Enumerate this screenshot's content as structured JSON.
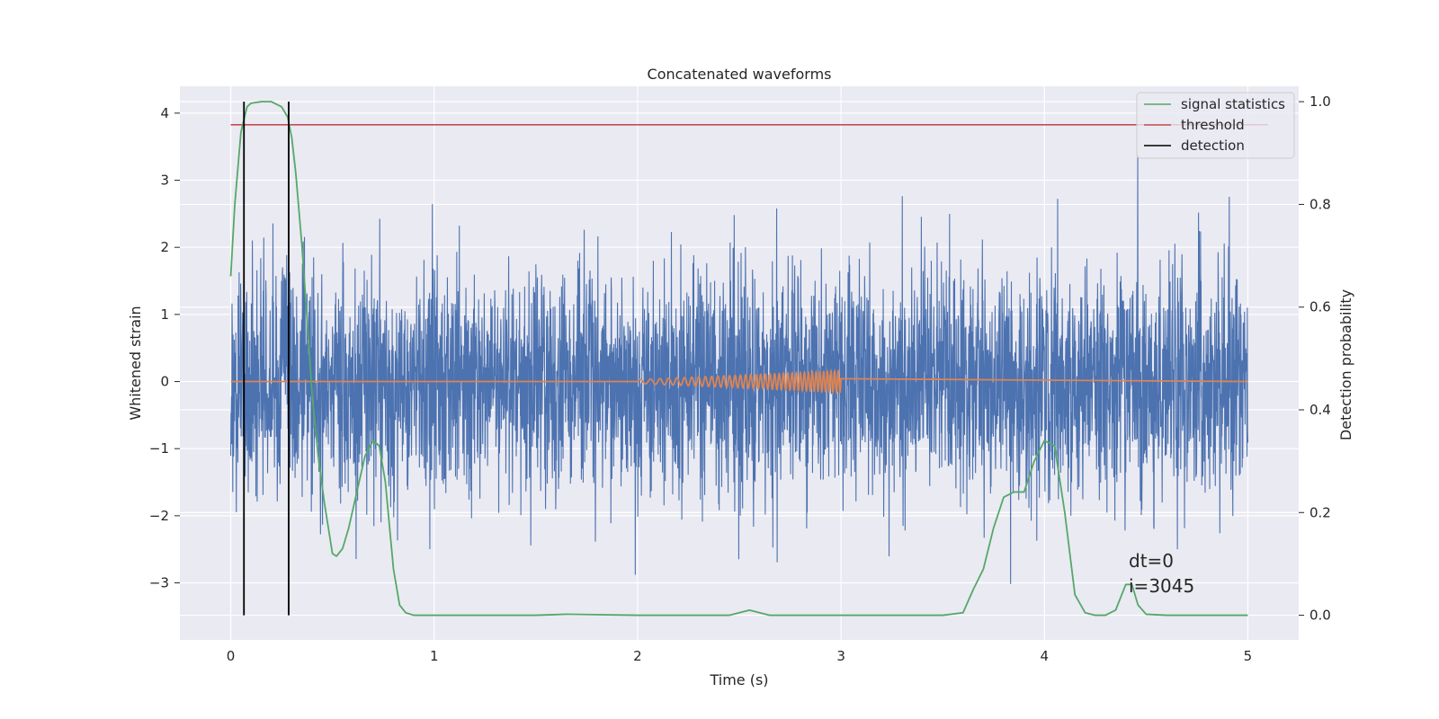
{
  "chart_data": {
    "type": "line",
    "title": "Concatenated waveforms",
    "xlabel": "Time (s)",
    "ylabel": "Whitened strain",
    "y2label": "Detection probability",
    "xlim": [
      -0.25,
      5.25
    ],
    "ylim": [
      -3.85,
      4.4
    ],
    "y2lim": [
      -0.048,
      1.03
    ],
    "xticks": [
      0,
      1,
      2,
      3,
      4,
      5
    ],
    "xtick_labels": [
      "0",
      "1",
      "2",
      "3",
      "4",
      "5"
    ],
    "yticks": [
      4,
      3,
      2,
      1,
      0,
      -1,
      -2,
      -3
    ],
    "ytick_labels": [
      "4",
      "3",
      "2",
      "1",
      "0",
      "−1",
      "−2",
      "−3"
    ],
    "y2ticks": [
      1.0,
      0.8,
      0.6,
      0.4,
      0.2,
      0.0
    ],
    "y2tick_labels": [
      "1.0",
      "0.8",
      "0.6",
      "0.4",
      "0.2",
      "0.0"
    ],
    "grid": true,
    "legend_position": "top-right",
    "colors": {
      "strain": "#4c72b0",
      "injection": "#dd8452",
      "signal_statistics": "#55a868",
      "threshold": "#c44e52",
      "detection": "#000000",
      "axes_bg": "#eaeaf2",
      "grid": "#ffffff"
    },
    "series": [
      {
        "name": "",
        "axis": "left",
        "kind": "noise",
        "x_range": [
          0,
          5
        ],
        "sigma": 0.85,
        "approx_range": [
          -3.45,
          4.0
        ]
      },
      {
        "name": "",
        "axis": "left",
        "kind": "chirp",
        "x_range": [
          2.0,
          3.0
        ],
        "amplitude_range": [
          0.03,
          0.16
        ],
        "baseline": 0
      },
      {
        "name": "signal statistics",
        "axis": "right",
        "x": [
          0.0,
          0.02,
          0.05,
          0.08,
          0.1,
          0.15,
          0.2,
          0.25,
          0.28,
          0.3,
          0.32,
          0.35,
          0.38,
          0.4,
          0.43,
          0.46,
          0.5,
          0.52,
          0.55,
          0.58,
          0.62,
          0.66,
          0.7,
          0.73,
          0.76,
          0.8,
          0.83,
          0.86,
          0.9,
          1.0,
          1.5,
          1.65,
          2.0,
          2.45,
          2.55,
          2.65,
          3.0,
          3.5,
          3.6,
          3.65,
          3.7,
          3.75,
          3.8,
          3.85,
          3.9,
          3.95,
          4.0,
          4.05,
          4.1,
          4.15,
          4.2,
          4.25,
          4.3,
          4.35,
          4.4,
          4.43,
          4.46,
          4.5,
          4.6,
          5.0
        ],
        "values": [
          0.66,
          0.8,
          0.94,
          0.99,
          0.997,
          1.0,
          1.0,
          0.99,
          0.97,
          0.93,
          0.86,
          0.72,
          0.55,
          0.43,
          0.31,
          0.22,
          0.12,
          0.115,
          0.13,
          0.17,
          0.24,
          0.31,
          0.34,
          0.33,
          0.26,
          0.09,
          0.02,
          0.005,
          0.0,
          0.0,
          0.0,
          0.002,
          0.0,
          0.0,
          0.01,
          0.0,
          0.0,
          0.0,
          0.005,
          0.05,
          0.09,
          0.17,
          0.23,
          0.24,
          0.24,
          0.3,
          0.34,
          0.33,
          0.2,
          0.04,
          0.005,
          0.0,
          0.0,
          0.01,
          0.06,
          0.06,
          0.02,
          0.002,
          0.0,
          0.0
        ]
      },
      {
        "name": "threshold",
        "axis": "right",
        "x": [
          0,
          5.1
        ],
        "values": [
          0.955,
          0.955
        ]
      },
      {
        "name": "detection",
        "axis": "right",
        "kind": "vertical",
        "x": [
          0.065,
          0.285
        ],
        "y_range": [
          0.0,
          1.0
        ]
      }
    ],
    "legend": [
      "signal statistics",
      "threshold",
      "detection"
    ],
    "annotations": [
      "dt=0",
      "i=3045"
    ]
  }
}
